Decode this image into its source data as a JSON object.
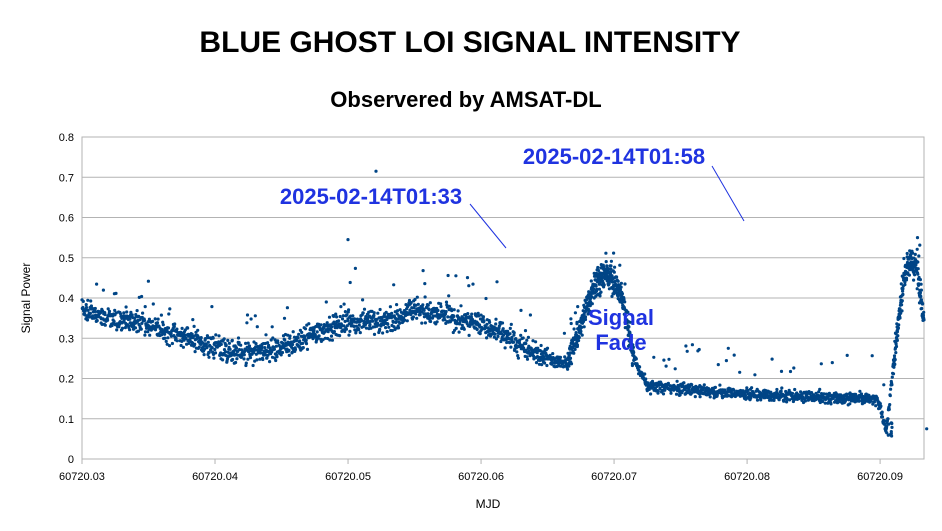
{
  "chart_data": {
    "type": "scatter",
    "title": "BLUE GHOST LOI SIGNAL INTENSITY",
    "subtitle": "Observered by AMSAT-DL",
    "xlabel": "MJD",
    "ylabel": "Signal Power",
    "xlim": [
      60720.03,
      60720.0933
    ],
    "ylim": [
      0,
      0.8
    ],
    "x_ticks": [
      "60720.03",
      "60720.04",
      "60720.05",
      "60720.06",
      "60720.07",
      "60720.08",
      "60720.09"
    ],
    "y_ticks": [
      "0",
      "0.1",
      "0.2",
      "0.3",
      "0.4",
      "0.5",
      "0.6",
      "0.7",
      "0.8"
    ],
    "grid": "horizontal",
    "marker_color": "#004586",
    "annotation_color": "#1f33e0",
    "series": [
      {
        "points": [
          [
            60720.03,
            0.37
          ],
          [
            60720.032,
            0.35
          ],
          [
            60720.034,
            0.34
          ],
          [
            60720.036,
            0.32
          ],
          [
            60720.038,
            0.3
          ],
          [
            60720.04,
            0.28
          ],
          [
            60720.042,
            0.265
          ],
          [
            60720.044,
            0.27
          ],
          [
            60720.046,
            0.29
          ],
          [
            60720.048,
            0.32
          ],
          [
            60720.05,
            0.34
          ],
          [
            60720.052,
            0.34
          ],
          [
            60720.054,
            0.35
          ],
          [
            60720.055,
            0.37
          ],
          [
            60720.057,
            0.36
          ],
          [
            60720.059,
            0.34
          ],
          [
            60720.061,
            0.32
          ],
          [
            60720.0625,
            0.29
          ],
          [
            60720.064,
            0.265
          ],
          [
            60720.0655,
            0.245
          ],
          [
            60720.0665,
            0.24
          ],
          [
            60720.0675,
            0.33
          ],
          [
            60720.0685,
            0.43
          ],
          [
            60720.0695,
            0.46
          ],
          [
            60720.0705,
            0.42
          ],
          [
            60720.0715,
            0.25
          ],
          [
            60720.0725,
            0.18
          ],
          [
            60720.075,
            0.175
          ],
          [
            60720.078,
            0.165
          ],
          [
            60720.081,
            0.16
          ],
          [
            60720.084,
            0.155
          ],
          [
            60720.087,
            0.15
          ],
          [
            60720.0888,
            0.15
          ],
          [
            60720.0898,
            0.15
          ],
          [
            60720.0905,
            0.07
          ],
          [
            60720.0912,
            0.3
          ],
          [
            60720.0918,
            0.45
          ],
          [
            60720.0923,
            0.5
          ],
          [
            60720.0927,
            0.47
          ],
          [
            60720.0931,
            0.4
          ],
          [
            60720.0933,
            0.34
          ]
        ]
      }
    ],
    "outliers": [
      [
        60720.0521,
        0.715
      ],
      [
        60720.05,
        0.545
      ],
      [
        60720.0935,
        0.075
      ]
    ],
    "annotations": [
      {
        "text": "2025-02-14T01:33",
        "x": 60720.0615,
        "y": 0.522
      },
      {
        "text": "2025-02-14T01:58",
        "x": 60720.08,
        "y": 0.585
      },
      {
        "text": "Signal",
        "x": 60720.0703,
        "y": 0.34
      },
      {
        "text": "Fade",
        "x": 60720.0703,
        "y": 0.28
      }
    ]
  }
}
